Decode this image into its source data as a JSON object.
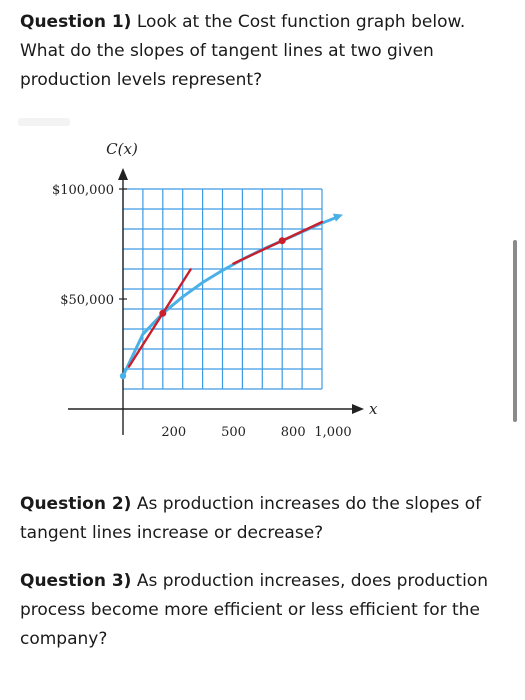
{
  "questions": {
    "q1_label": "Question 1)",
    "q1_text": "Look at the Cost function graph below. What do the slopes of tangent lines at two given production levels represent?",
    "q2_label": "Question 2)",
    "q2_text": "As production increases do the slopes of tangent lines increase or decrease?",
    "q3_label": "Question 3)",
    "q3_text": "As production increases, does production process become more efficient or less efficient for the company?"
  },
  "colors": {
    "grid": "#3d9be3",
    "curve": "#4ab0e6",
    "tangent": "#c8202c",
    "axis": "#222222"
  },
  "chart_data": {
    "type": "line",
    "ylabel": "C(x)",
    "xlabel": "x",
    "x_ticks": [
      "200",
      "500",
      "800",
      "1,000"
    ],
    "x_tick_values": [
      200,
      500,
      800,
      1000
    ],
    "y_ticks": [
      "$50,000",
      "$100,000"
    ],
    "y_tick_values": [
      50000,
      100000
    ],
    "xlim": [
      0,
      1000
    ],
    "ylim": [
      0,
      100000
    ],
    "grid": true,
    "series": [
      {
        "x": [
          0,
          100,
          200,
          300,
          400,
          500,
          600,
          700,
          800,
          900,
          1000,
          1070
        ],
        "y": [
          15000,
          34000,
          43500,
          51000,
          57500,
          63000,
          68000,
          72500,
          76500,
          80500,
          84500,
          87000
        ]
      }
    ],
    "tangent_points": [
      {
        "x": 200,
        "y": 43500,
        "x_from": 30,
        "x_to": 340
      },
      {
        "x": 800,
        "y": 76500,
        "x_from": 555,
        "x_to": 1000
      }
    ]
  }
}
